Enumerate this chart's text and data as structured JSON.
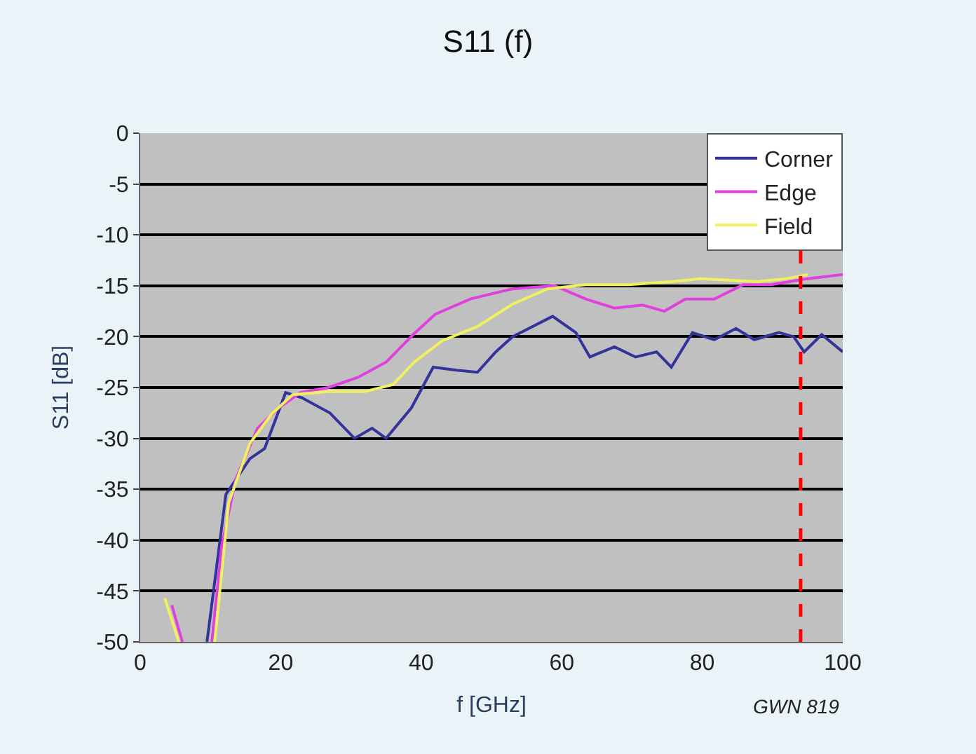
{
  "chart_data": {
    "type": "line",
    "title": "S11 (f)",
    "xlabel": "f [GHz]",
    "ylabel": "S11 [dB]",
    "xlim": [
      0,
      100
    ],
    "xticks": [
      0,
      20,
      40,
      60,
      80,
      100
    ],
    "ylim": [
      -50,
      0
    ],
    "yticks": [
      0,
      -5,
      -10,
      -15,
      -20,
      -25,
      -30,
      -35,
      -40,
      -45,
      -50
    ],
    "grid": "y",
    "legend": "top right",
    "marker": "none",
    "line_style": "solid",
    "series": [
      {
        "name": "Corner",
        "color": "#333399",
        "x": [
          9.5,
          12.2,
          15.6,
          17.7,
          20.7,
          23,
          27,
          30.5,
          33,
          35,
          38.6,
          41.7,
          45,
          48,
          50.6,
          53,
          58.7,
          62,
          64,
          67.5,
          70.5,
          73.5,
          75.6,
          78.6,
          81.7,
          84.8,
          87.4,
          90.9,
          93,
          94.5,
          97,
          100
        ],
        "values": [
          -50,
          -35.5,
          -32,
          -31,
          -25.5,
          -26,
          -27.5,
          -30,
          -29,
          -30,
          -27,
          -23,
          -23.3,
          -23.5,
          -21.5,
          -20,
          -18,
          -19.6,
          -22,
          -21,
          -22,
          -21.5,
          -23,
          -19.6,
          -20.3,
          -19.2,
          -20.3,
          -19.6,
          -20,
          -21.5,
          -19.8,
          -21.5
        ]
      },
      {
        "name": "Edge",
        "color": "#e040e0",
        "x": [
          4.5,
          6,
          8,
          10.2,
          11.6,
          13.6,
          16.7,
          19.7,
          22.8,
          26.8,
          31,
          35,
          39,
          42,
          47,
          53,
          59,
          63.4,
          67.5,
          71.5,
          74.6,
          77.6,
          81.7,
          85.8,
          89.8,
          95,
          100
        ],
        "values": [
          -46.4,
          -50,
          null,
          -50,
          -40.6,
          -34,
          -29,
          -27,
          -25.5,
          -25,
          -24,
          -22.5,
          -19.7,
          -17.8,
          -16.3,
          -15.3,
          -15,
          -16.3,
          -17.2,
          -16.9,
          -17.5,
          -16.3,
          -16.3,
          -14.9,
          -14.9,
          -14.3,
          -13.9
        ]
      },
      {
        "name": "Field",
        "color": "#f0f060",
        "x": [
          3.5,
          5.5,
          8,
          10.6,
          12.6,
          15.6,
          18.7,
          21.7,
          26.8,
          32,
          36,
          39,
          43,
          48,
          53,
          58,
          63.4,
          69.5,
          75.6,
          79.7,
          87.8,
          92,
          95
        ],
        "values": [
          -45.7,
          -50,
          null,
          -50,
          -36.3,
          -30.5,
          -27.6,
          -25.7,
          -25.4,
          -25.4,
          -24.7,
          -22.5,
          -20.4,
          -19,
          -16.8,
          -15.3,
          -14.9,
          -14.9,
          -14.6,
          -14.3,
          -14.6,
          -14.3,
          -13.9
        ]
      }
    ],
    "ref_lines": [
      {
        "axis": "x",
        "value": 94,
        "color": "#ff0000",
        "line_style": "dashed"
      }
    ],
    "annotations": [
      "GWN 819"
    ]
  }
}
